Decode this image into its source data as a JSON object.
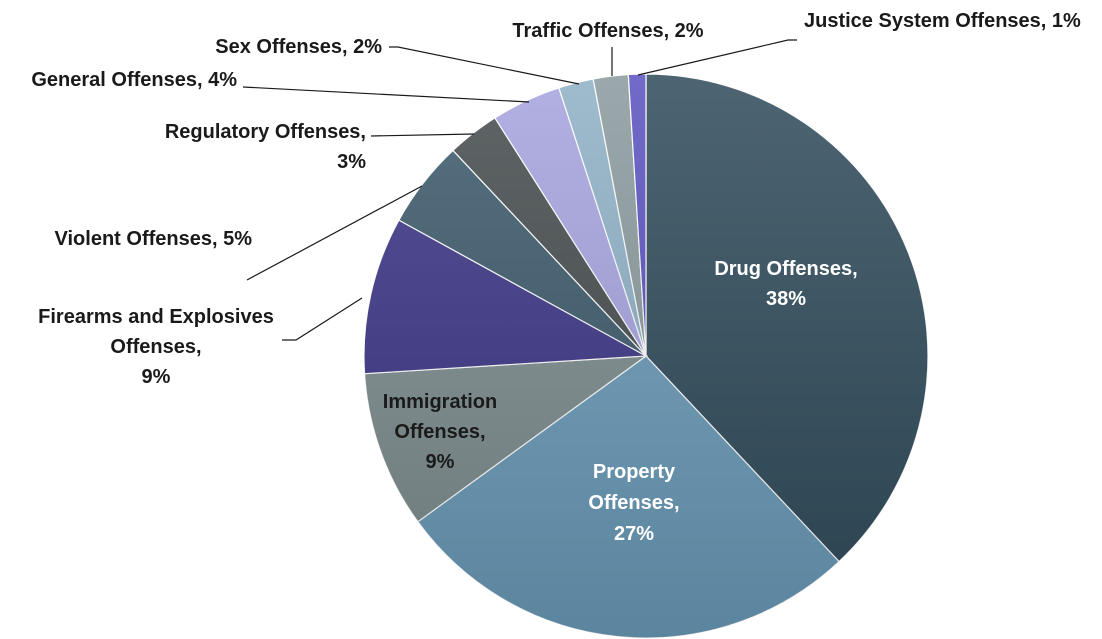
{
  "chart_data": {
    "type": "pie",
    "title": "",
    "start_angle_deg": 0,
    "direction": "clockwise",
    "slices": [
      {
        "name": "Drug Offenses",
        "value": 38,
        "label": "38%",
        "color": "#304b5b"
      },
      {
        "name": "Property Offenses",
        "value": 27,
        "label": "27%",
        "color": "#6a9ab8"
      },
      {
        "name": "Immigration Offenses",
        "value": 9,
        "label": "9%",
        "color": "#7d8c8e"
      },
      {
        "name": "Firearms and Explosives Offenses",
        "value": 9,
        "label": "9%",
        "color": "#3c3586"
      },
      {
        "name": "Violent Offenses",
        "value": 5,
        "label": "5%",
        "color": "#3c5a6c"
      },
      {
        "name": "Regulatory Offenses",
        "value": 3,
        "label": "3%",
        "color": "#464c4e"
      },
      {
        "name": "General Offenses",
        "value": 4,
        "label": "4%",
        "color": "#a6a4df"
      },
      {
        "name": "Sex Offenses",
        "value": 2,
        "label": "2%",
        "color": "#8fb1c6"
      },
      {
        "name": "Traffic Offenses",
        "value": 2,
        "label": "2%",
        "color": "#8a9a9e"
      },
      {
        "name": "Justice System Offenses",
        "value": 1,
        "label": "1%",
        "color": "#5a52c0"
      }
    ],
    "label_text": [
      [
        "Drug Offenses,",
        "38%"
      ],
      [
        "Property",
        "Offenses,",
        "27%"
      ],
      [
        "Immigration",
        "Offenses,",
        "9%"
      ],
      [
        "Firearms and Explosives",
        "Offenses,",
        "9%"
      ],
      [
        "Violent Offenses, 5%"
      ],
      [
        "Regulatory Offenses,",
        "3%"
      ],
      [
        "General Offenses, 4%"
      ],
      [
        "Sex Offenses, 2%"
      ],
      [
        "Traffic Offenses, 2%"
      ],
      [
        "Justice System Offenses, 1%"
      ]
    ]
  }
}
